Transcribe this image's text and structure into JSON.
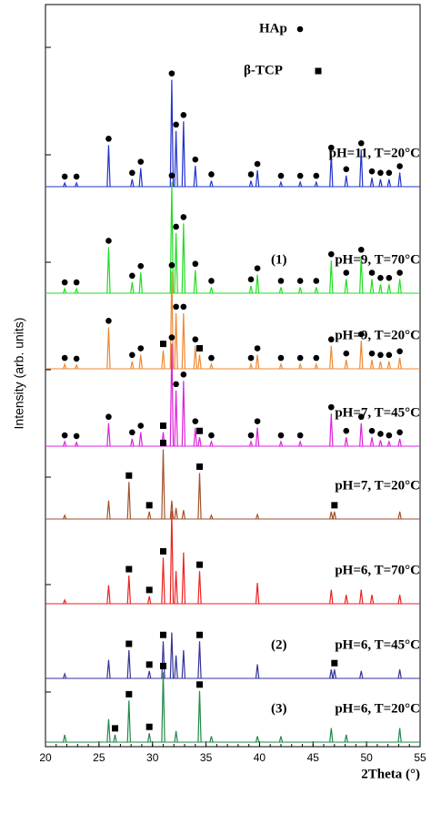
{
  "chart_data": {
    "type": "spectrum",
    "xlabel": "2Theta (°)",
    "ylabel": "Intensity (arb. units)",
    "xlim": [
      20,
      55
    ],
    "xticks": [
      20,
      25,
      30,
      35,
      40,
      45,
      50,
      55
    ],
    "ylim": [
      0,
      1000
    ],
    "legend": [
      {
        "name": "HAp",
        "marker": "circle"
      },
      {
        "name": "β-TCP",
        "marker": "square"
      }
    ],
    "x": [
      21.8,
      22.9,
      25.9,
      26.5,
      27.8,
      28.1,
      28.9,
      29.7,
      31.0,
      31.8,
      32.2,
      32.9,
      34.0,
      34.4,
      35.5,
      39.2,
      39.8,
      42.0,
      43.8,
      45.3,
      46.7,
      47.0,
      48.1,
      49.5,
      50.5,
      51.3,
      52.1,
      53.1
    ],
    "phase": [
      "circle",
      "circle",
      "circle",
      "square",
      "square",
      "circle",
      "circle",
      "square",
      "square",
      "circle",
      "circle",
      "circle",
      "circle",
      "square",
      "circle",
      "circle",
      "circle",
      "circle",
      "circle",
      "circle",
      "circle",
      "square",
      "circle",
      "circle",
      "circle",
      "circle",
      "circle",
      "circle"
    ],
    "series": [
      {
        "name": "pH=11, T=20°C",
        "color": "#2233cc",
        "markers": [
          "circle"
        ],
        "values": [
          5,
          5,
          56,
          null,
          null,
          10,
          25,
          null,
          null,
          144,
          75,
          88,
          28,
          null,
          8,
          8,
          22,
          6,
          6,
          6,
          44,
          null,
          15,
          50,
          12,
          10,
          10,
          19
        ]
      },
      {
        "name": "pH=9, T=70°C",
        "color": "#22dd22",
        "tag": "(1)",
        "markers": [
          "circle"
        ],
        "values": [
          6,
          6,
          62,
          null,
          null,
          15,
          28,
          null,
          null,
          150,
          81,
          94,
          31,
          null,
          8,
          10,
          25,
          8,
          8,
          8,
          44,
          null,
          19,
          50,
          19,
          12,
          12,
          19
        ]
      },
      {
        "name": "pH=9, T=20°C",
        "color": "#ee8833",
        "markers": [
          "circle",
          "square"
        ],
        "values": [
          6,
          5,
          56,
          null,
          null,
          10,
          19,
          null,
          25,
          131,
          75,
          75,
          31,
          19,
          6,
          6,
          19,
          6,
          6,
          6,
          31,
          null,
          12,
          38,
          12,
          10,
          10,
          15
        ]
      },
      {
        "name": "pH=7, T=45°C",
        "color": "#dd22dd",
        "markers": [
          "circle",
          "square"
        ],
        "values": [
          6,
          5,
          31,
          null,
          null,
          10,
          19,
          null,
          19,
          138,
          75,
          88,
          25,
          12,
          6,
          6,
          25,
          6,
          6,
          null,
          44,
          null,
          12,
          31,
          12,
          8,
          6,
          10
        ]
      },
      {
        "name": "pH=7, T=20°C",
        "color": "#a0522d",
        "markers": [
          "square"
        ],
        "values": [
          5,
          null,
          25,
          null,
          50,
          null,
          null,
          10,
          94,
          25,
          15,
          12,
          null,
          62,
          5,
          null,
          6,
          null,
          null,
          null,
          10,
          10,
          null,
          null,
          null,
          null,
          null,
          10
        ]
      },
      {
        "name": "pH=6, T=70°C",
        "color": "#ee2222",
        "markers": [
          "square"
        ],
        "values": [
          5,
          null,
          25,
          null,
          38,
          null,
          null,
          10,
          62,
          125,
          44,
          69,
          null,
          44,
          null,
          null,
          28,
          null,
          null,
          null,
          19,
          null,
          12,
          19,
          12,
          null,
          null,
          12
        ]
      },
      {
        "name": "pH=6, T=45°C",
        "color": "#333399",
        "tag": "(2)",
        "markers": [
          "square"
        ],
        "values": [
          6,
          null,
          25,
          null,
          38,
          null,
          null,
          10,
          50,
          62,
          31,
          38,
          null,
          50,
          null,
          null,
          19,
          null,
          null,
          null,
          12,
          12,
          null,
          10,
          null,
          null,
          null,
          12
        ]
      },
      {
        "name": "pH=6, T=20°C",
        "color": "#22884a",
        "tag": "(3)",
        "markers": [
          "square"
        ],
        "values": [
          10,
          null,
          31,
          10,
          56,
          null,
          null,
          12,
          94,
          null,
          15,
          null,
          null,
          69,
          8,
          null,
          8,
          8,
          null,
          null,
          19,
          null,
          10,
          null,
          null,
          null,
          null,
          19
        ]
      }
    ]
  }
}
